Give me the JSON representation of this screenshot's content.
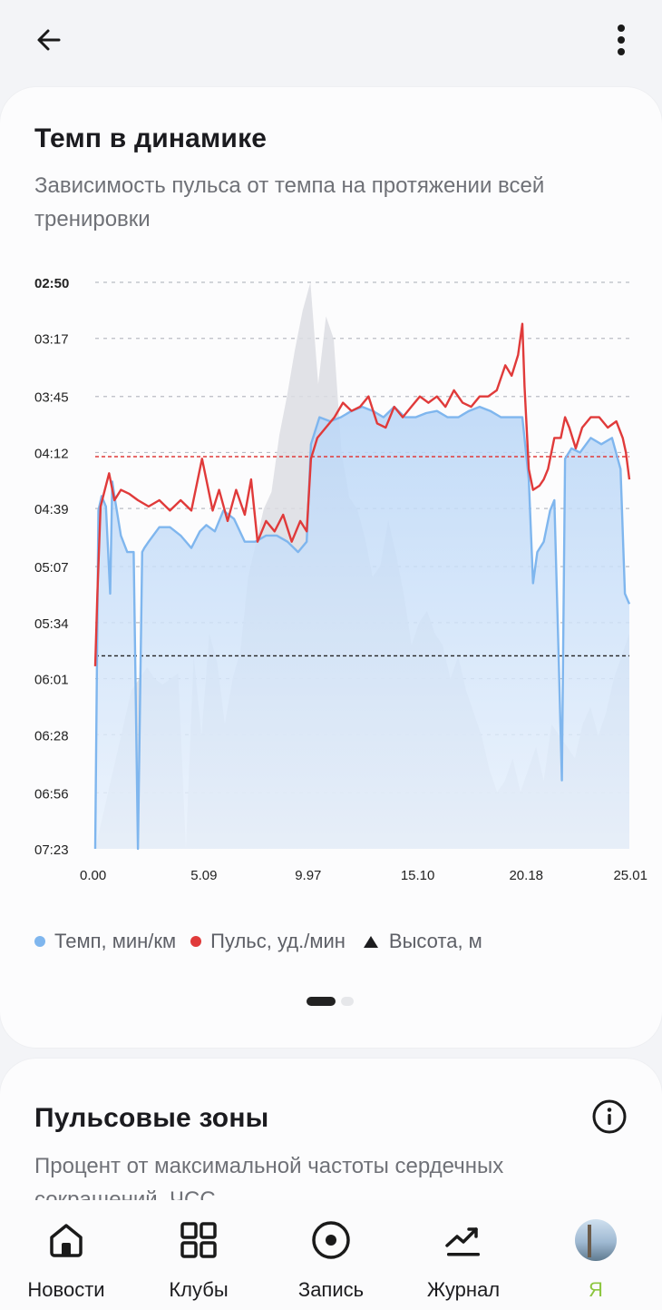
{
  "header": {
    "back_icon": "arrow-left-icon",
    "more_icon": "more-vertical-icon"
  },
  "pace_card": {
    "title": "Темп в динамике",
    "subtitle": "Зависимость пульса от темпа на протяжении всей тренировки",
    "legend": [
      {
        "label": "Темп, мин/км",
        "color": "#7fb6ee",
        "marker": "dot"
      },
      {
        "label": "Пульс, уд./мин",
        "color": "#e03a3a",
        "marker": "dot"
      },
      {
        "label": "Высота, м",
        "color": "#1d1d1f",
        "marker": "triangle"
      }
    ],
    "pager": {
      "pages": 2,
      "active": 1
    }
  },
  "chart_data": {
    "type": "line",
    "x_ticks": [
      "0.00",
      "5.09",
      "9.97",
      "15.10",
      "20.18",
      "25.01"
    ],
    "x_tick_values": [
      0.0,
      5.09,
      9.97,
      15.1,
      20.18,
      25.01
    ],
    "xlim": [
      0,
      25.01
    ],
    "y_ticks": [
      "02:50",
      "03:17",
      "03:45",
      "04:12",
      "04:39",
      "05:07",
      "05:34",
      "06:01",
      "06:28",
      "06:56",
      "07:23"
    ],
    "y_axis": "pace (min/km), inverted — faster at top",
    "grid": "horizontal dashed",
    "reference_lines": [
      {
        "series": "Пульс, уд./мин",
        "at_pace_label": "≈04:13",
        "color": "#e03a3a"
      },
      {
        "series": "Темп, мин/км",
        "at_pace_label": "≈05:50",
        "color": "#222222"
      }
    ],
    "series": [
      {
        "name": "Темп, мин/км",
        "color": "#7fb6ee",
        "fill": "area",
        "x": [
          0.0,
          0.15,
          0.3,
          0.5,
          0.7,
          0.8,
          0.9,
          1.2,
          1.5,
          1.8,
          2.0,
          2.2,
          2.3,
          2.5,
          3.0,
          3.5,
          4.0,
          4.5,
          4.9,
          5.2,
          5.6,
          6.0,
          6.5,
          7.0,
          7.5,
          8.0,
          8.5,
          9.0,
          9.5,
          9.9,
          10.1,
          10.5,
          11.0,
          11.5,
          12.0,
          12.5,
          13.0,
          13.5,
          14.0,
          14.5,
          15.0,
          15.5,
          16.0,
          16.5,
          17.0,
          17.5,
          18.0,
          18.5,
          19.0,
          19.5,
          20.0,
          20.3,
          20.5,
          20.7,
          21.0,
          21.3,
          21.5,
          21.7,
          21.85,
          22.0,
          22.3,
          22.7,
          23.2,
          23.7,
          24.2,
          24.6,
          24.8,
          25.01
        ],
        "values": [
          "07:23",
          "04:40",
          "04:33",
          "04:38",
          "05:20",
          "04:26",
          "04:33",
          "04:52",
          "05:00",
          "05:00",
          "07:23",
          "05:00",
          "04:58",
          "04:55",
          "04:48",
          "04:48",
          "04:52",
          "04:58",
          "04:50",
          "04:47",
          "04:50",
          "04:40",
          "04:44",
          "04:55",
          "04:55",
          "04:52",
          "04:52",
          "04:55",
          "05:00",
          "04:55",
          "04:08",
          "03:55",
          "03:57",
          "03:55",
          "03:52",
          "03:50",
          "03:52",
          "03:55",
          "03:50",
          "03:55",
          "03:55",
          "03:53",
          "03:52",
          "03:55",
          "03:55",
          "03:52",
          "03:50",
          "03:52",
          "03:55",
          "03:55",
          "03:55",
          "04:25",
          "05:15",
          "05:00",
          "04:55",
          "04:40",
          "04:35",
          "05:50",
          "06:50",
          "04:15",
          "04:10",
          "04:12",
          "04:05",
          "04:08",
          "04:05",
          "04:20",
          "05:20",
          "05:25"
        ]
      },
      {
        "name": "Пульс, уд./мин",
        "color": "#e03a3a",
        "x": [
          0.0,
          0.1,
          0.25,
          0.45,
          0.65,
          0.9,
          1.2,
          1.6,
          2.0,
          2.5,
          3.0,
          3.5,
          4.0,
          4.5,
          5.0,
          5.5,
          5.8,
          6.2,
          6.6,
          7.0,
          7.3,
          7.6,
          8.0,
          8.4,
          8.8,
          9.2,
          9.6,
          9.9,
          10.1,
          10.4,
          10.8,
          11.2,
          11.6,
          12.0,
          12.4,
          12.8,
          13.2,
          13.6,
          14.0,
          14.4,
          14.8,
          15.2,
          15.6,
          16.0,
          16.4,
          16.8,
          17.2,
          17.6,
          18.0,
          18.4,
          18.8,
          19.2,
          19.5,
          19.8,
          20.0,
          20.1,
          20.3,
          20.5,
          20.8,
          21.0,
          21.2,
          21.5,
          21.8,
          22.0,
          22.2,
          22.5,
          22.8,
          23.2,
          23.6,
          24.0,
          24.4,
          24.7,
          24.85,
          25.01
        ],
        "values": [
          "05:55",
          "05:20",
          "04:38",
          "04:30",
          "04:22",
          "04:35",
          "04:30",
          "04:32",
          "04:35",
          "04:38",
          "04:35",
          "04:40",
          "04:35",
          "04:40",
          "04:15",
          "04:40",
          "04:30",
          "04:45",
          "04:30",
          "04:42",
          "04:25",
          "04:55",
          "04:45",
          "04:50",
          "04:42",
          "04:55",
          "04:45",
          "04:50",
          "04:15",
          "04:05",
          "04:00",
          "03:55",
          "03:48",
          "03:52",
          "03:50",
          "03:45",
          "03:58",
          "04:00",
          "03:50",
          "03:55",
          "03:50",
          "03:45",
          "03:48",
          "03:45",
          "03:50",
          "03:42",
          "03:48",
          "03:50",
          "03:45",
          "03:45",
          "03:42",
          "03:30",
          "03:35",
          "03:25",
          "03:10",
          "03:40",
          "04:20",
          "04:30",
          "04:28",
          "04:25",
          "04:20",
          "04:05",
          "04:05",
          "03:55",
          "04:00",
          "04:10",
          "04:00",
          "03:55",
          "03:55",
          "04:00",
          "03:57",
          "04:05",
          "04:12",
          "04:25"
        ]
      },
      {
        "name": "Высота, м",
        "color": "#dcdde3",
        "fill": "area",
        "relative_height": [
          0.28,
          0.3,
          0.32,
          0.3,
          0.29,
          0.3,
          0.31,
          0.0,
          0.34,
          0.2,
          0.38,
          0.33,
          0.22,
          0.3,
          0.35,
          0.48,
          0.54,
          0.6,
          0.63,
          0.73,
          0.8,
          0.88,
          0.95,
          1.0,
          0.82,
          0.94,
          0.9,
          0.7,
          0.62,
          0.6,
          0.55,
          0.48,
          0.5,
          0.58,
          0.52,
          0.45,
          0.36,
          0.4,
          0.42,
          0.38,
          0.36,
          0.3,
          0.34,
          0.28,
          0.24,
          0.2,
          0.14,
          0.1,
          0.12,
          0.16,
          0.1,
          0.14,
          0.18,
          0.12,
          0.22,
          0.2,
          0.18,
          0.16,
          0.22,
          0.25,
          0.2,
          0.24,
          0.3,
          0.34,
          0.38
        ]
      }
    ]
  },
  "zones_card": {
    "title": "Пульсовые зоны",
    "subtitle": "Процент от максимальной частоты сердечных сокращений, ЧСС",
    "info_icon": "info-circle-icon"
  },
  "bottom_nav": [
    {
      "label": "Новости",
      "icon": "home-icon",
      "active": false
    },
    {
      "label": "Клубы",
      "icon": "grid-icon",
      "active": false
    },
    {
      "label": "Запись",
      "icon": "record-icon",
      "active": false
    },
    {
      "label": "Журнал",
      "icon": "chart-trend-icon",
      "active": false
    },
    {
      "label": "Я",
      "icon": "avatar",
      "active": true
    }
  ]
}
